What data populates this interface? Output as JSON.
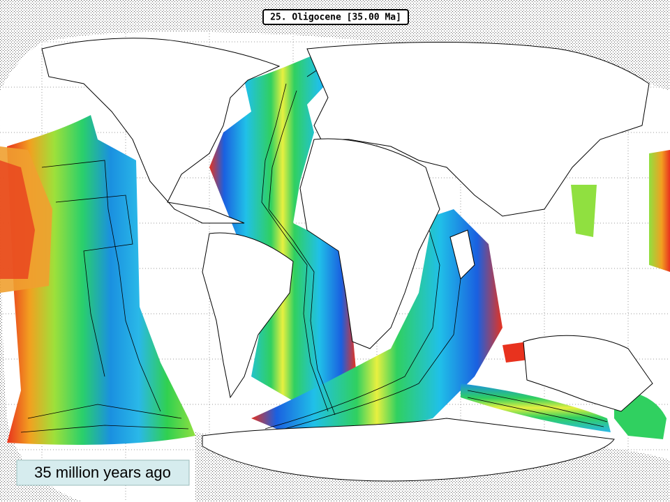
{
  "map": {
    "title": "25. Oligocene [35.00 Ma]",
    "caption": "35 million years ago"
  }
}
